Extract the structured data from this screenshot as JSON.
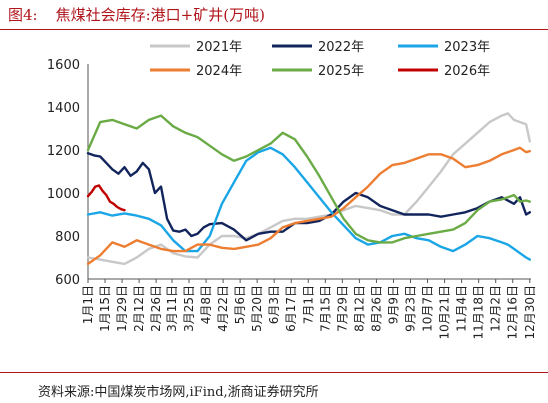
{
  "title": {
    "figure_no": "图4:",
    "text": "焦煤社会库存:港口+矿井(万吨)"
  },
  "source": "资料来源:中国煤炭市场网,iFind,浙商证券研究所",
  "chart_data": {
    "type": "line",
    "title": "焦煤社会库存:港口+矿井(万吨)",
    "xlabel": "",
    "ylabel": "",
    "ylim": [
      600,
      1600
    ],
    "yticks": [
      600,
      800,
      1000,
      1200,
      1400,
      1600
    ],
    "grid": false,
    "legend": "top-center",
    "x_ticks": [
      "1月1日",
      "1月15日",
      "1月29日",
      "2月12日",
      "2月26日",
      "3月11日",
      "3月25日",
      "4月8日",
      "4月22日",
      "5月6日",
      "5月20日",
      "6月3日",
      "6月17日",
      "7月1日",
      "7月15日",
      "7月29日",
      "8月12日",
      "8月26日",
      "9月9日",
      "9月23日",
      "10月7日",
      "10月21日",
      "11月4日",
      "11月18日",
      "12月2日",
      "12月16日",
      "12月30日"
    ],
    "x_tick_days": [
      0,
      14,
      28,
      42,
      56,
      69,
      83,
      97,
      111,
      125,
      139,
      153,
      167,
      181,
      195,
      209,
      223,
      237,
      251,
      265,
      279,
      293,
      307,
      321,
      335,
      349,
      363
    ],
    "series": [
      {
        "name": "2021年",
        "color": "#c8c8c8",
        "x": [
          0,
          10,
          20,
          30,
          40,
          50,
          60,
          70,
          80,
          90,
          100,
          110,
          120,
          130,
          140,
          150,
          160,
          170,
          180,
          190,
          200,
          210,
          220,
          230,
          240,
          250,
          260,
          270,
          280,
          290,
          300,
          310,
          320,
          330,
          340,
          345,
          350,
          355,
          360,
          363
        ],
        "values": [
          700,
          690,
          680,
          670,
          700,
          740,
          760,
          720,
          705,
          700,
          760,
          800,
          800,
          790,
          810,
          840,
          870,
          880,
          880,
          890,
          900,
          920,
          940,
          930,
          920,
          900,
          900,
          960,
          1030,
          1100,
          1180,
          1230,
          1280,
          1330,
          1360,
          1370,
          1340,
          1330,
          1320,
          1240
        ]
      },
      {
        "name": "2022年",
        "color": "#12245c",
        "x": [
          0,
          5,
          10,
          15,
          20,
          25,
          30,
          35,
          40,
          45,
          50,
          55,
          60,
          65,
          70,
          75,
          80,
          85,
          90,
          95,
          100,
          110,
          120,
          130,
          140,
          150,
          160,
          170,
          180,
          190,
          200,
          210,
          220,
          230,
          240,
          250,
          260,
          270,
          280,
          290,
          300,
          310,
          320,
          330,
          340,
          350,
          355,
          360,
          363
        ],
        "values": [
          1185,
          1175,
          1170,
          1140,
          1110,
          1090,
          1120,
          1080,
          1100,
          1140,
          1110,
          1000,
          1030,
          880,
          825,
          820,
          830,
          800,
          810,
          840,
          855,
          860,
          830,
          780,
          810,
          820,
          820,
          860,
          860,
          870,
          900,
          960,
          1000,
          980,
          940,
          920,
          900,
          900,
          900,
          890,
          900,
          910,
          930,
          960,
          980,
          950,
          980,
          900,
          910
        ]
      },
      {
        "name": "2023年",
        "color": "#1aa6e6",
        "x": [
          0,
          10,
          20,
          30,
          40,
          50,
          60,
          70,
          80,
          90,
          100,
          110,
          120,
          130,
          140,
          150,
          160,
          170,
          180,
          190,
          200,
          210,
          220,
          230,
          240,
          250,
          260,
          270,
          280,
          290,
          300,
          310,
          320,
          330,
          340,
          345,
          350,
          355,
          360,
          363
        ],
        "values": [
          900,
          910,
          895,
          905,
          895,
          880,
          850,
          780,
          730,
          730,
          800,
          950,
          1050,
          1150,
          1190,
          1210,
          1180,
          1120,
          1050,
          980,
          910,
          850,
          790,
          760,
          770,
          800,
          810,
          790,
          780,
          750,
          730,
          760,
          800,
          790,
          770,
          760,
          740,
          720,
          700,
          690
        ]
      },
      {
        "name": "2024年",
        "color": "#ed7d31",
        "x": [
          0,
          10,
          20,
          30,
          40,
          50,
          60,
          70,
          80,
          90,
          100,
          110,
          120,
          130,
          140,
          150,
          160,
          170,
          180,
          190,
          200,
          210,
          220,
          230,
          240,
          250,
          260,
          270,
          280,
          290,
          300,
          310,
          320,
          330,
          340,
          350,
          355,
          360,
          363
        ],
        "values": [
          670,
          710,
          770,
          750,
          780,
          760,
          740,
          730,
          730,
          760,
          760,
          745,
          740,
          750,
          760,
          790,
          840,
          860,
          870,
          880,
          890,
          930,
          980,
          1030,
          1090,
          1130,
          1140,
          1160,
          1180,
          1180,
          1160,
          1120,
          1130,
          1150,
          1180,
          1200,
          1210,
          1190,
          1195
        ]
      },
      {
        "name": "2025年",
        "color": "#6aab46",
        "x": [
          0,
          10,
          20,
          30,
          40,
          50,
          60,
          70,
          80,
          90,
          100,
          110,
          120,
          130,
          140,
          150,
          160,
          170,
          180,
          190,
          200,
          210,
          220,
          230,
          240,
          250,
          260,
          270,
          280,
          290,
          300,
          310,
          320,
          330,
          340,
          345,
          350,
          355,
          360,
          363
        ],
        "values": [
          1200,
          1330,
          1340,
          1320,
          1300,
          1340,
          1360,
          1310,
          1280,
          1260,
          1220,
          1180,
          1150,
          1170,
          1200,
          1230,
          1280,
          1250,
          1170,
          1080,
          980,
          880,
          810,
          780,
          770,
          770,
          790,
          800,
          810,
          820,
          830,
          860,
          920,
          960,
          970,
          980,
          990,
          960,
          965,
          960
        ]
      },
      {
        "name": "2026年",
        "color": "#c00000",
        "x": [
          0,
          3,
          6,
          9,
          12,
          15,
          18,
          21,
          24,
          27,
          30
        ],
        "values": [
          985,
          1005,
          1030,
          1035,
          1010,
          990,
          960,
          950,
          935,
          925,
          920
        ]
      }
    ]
  }
}
